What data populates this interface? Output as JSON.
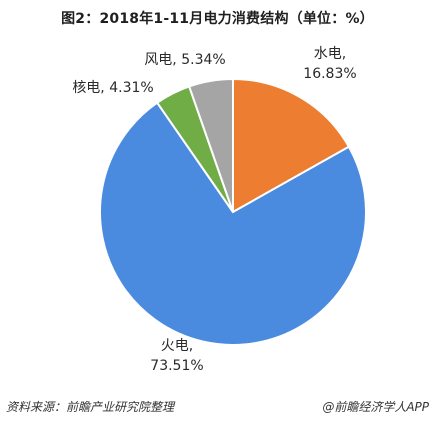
{
  "chart_data": {
    "type": "pie",
    "title": "图2：2018年1-11月电力消费结构（单位：%）",
    "slices": [
      {
        "name": "水电",
        "value": 16.83,
        "label_pct": "16.83%",
        "color": "#ED7D31"
      },
      {
        "name": "火电",
        "value": 73.51,
        "label_pct": "73.51%",
        "color": "#4A8BE0"
      },
      {
        "name": "核电",
        "value": 4.31,
        "label_pct": "4.31%",
        "color": "#70AD47"
      },
      {
        "name": "风电",
        "value": 5.34,
        "label_pct": "5.34%",
        "color": "#A5A5A5"
      }
    ]
  },
  "footer": {
    "source": "资料来源：前瞻产业研究院整理",
    "brand": "@前瞻经济学人APP"
  }
}
